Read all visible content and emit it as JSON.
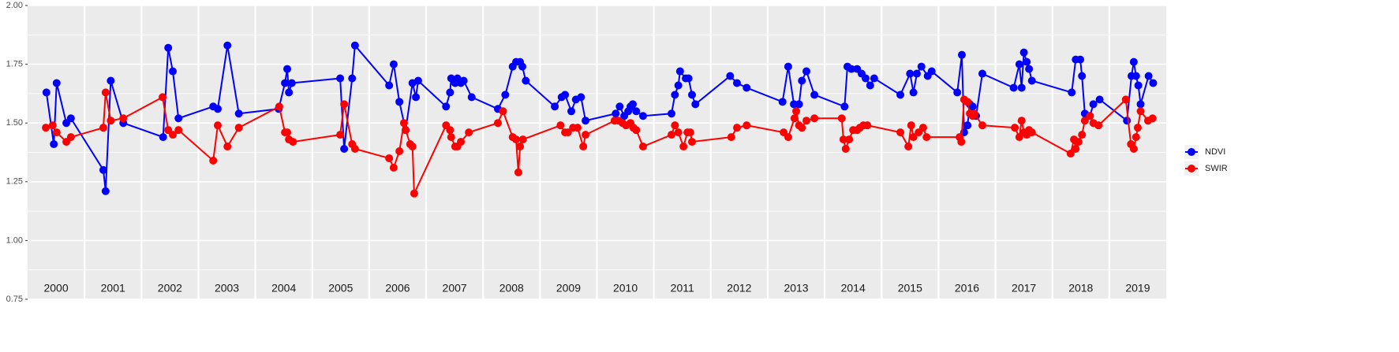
{
  "chart_data": {
    "type": "line",
    "xlim": [
      2000,
      2020
    ],
    "ylim": [
      0.75,
      2.0
    ],
    "yticks": [
      0.75,
      {
        "value": 1.0,
        "label": "1.00"
      },
      1.25,
      {
        "value": 1.5,
        "label": "1.50"
      },
      1.75,
      {
        "value": 2.0,
        "label": "2.00"
      }
    ],
    "yminor_ticks": [
      0.875,
      1.125,
      1.375,
      1.625,
      1.875
    ],
    "xticks": [
      {
        "value": 2000.5,
        "label": "2000"
      },
      {
        "value": 2001.5,
        "label": "2001"
      },
      {
        "value": 2002.5,
        "label": "2002"
      },
      {
        "value": 2003.5,
        "label": "2003"
      },
      {
        "value": 2004.5,
        "label": "2004"
      },
      {
        "value": 2005.5,
        "label": "2005"
      },
      {
        "value": 2006.5,
        "label": "2006"
      },
      {
        "value": 2007.5,
        "label": "2007"
      },
      {
        "value": 2008.5,
        "label": "2008"
      },
      {
        "value": 2009.5,
        "label": "2009"
      },
      {
        "value": 2010.5,
        "label": "2010"
      },
      {
        "value": 2011.5,
        "label": "2011"
      },
      {
        "value": 2012.5,
        "label": "2012"
      },
      {
        "value": 2013.5,
        "label": "2013"
      },
      {
        "value": 2014.5,
        "label": "2014"
      },
      {
        "value": 2015.5,
        "label": "2015"
      },
      {
        "value": 2016.5,
        "label": "2016"
      },
      {
        "value": 2017.5,
        "label": "2017"
      },
      {
        "value": 2018.5,
        "label": "2018"
      },
      {
        "value": 2019.5,
        "label": "2019"
      }
    ],
    "xgrid": [
      2001,
      2002,
      2003,
      2004,
      2005,
      2006,
      2007,
      2008,
      2009,
      2010,
      2011,
      2012,
      2013,
      2014,
      2015,
      2016,
      2017,
      2018,
      2019
    ],
    "grid": true,
    "legend": "right",
    "series": [
      {
        "name": "NDVI",
        "color": "#0000ff",
        "x": [
          2000.33,
          2000.46,
          2000.51,
          2000.68,
          2000.76,
          2001.33,
          2001.37,
          2001.46,
          2001.68,
          2002.38,
          2002.47,
          2002.55,
          2002.65,
          2003.26,
          2003.34,
          2003.51,
          2003.71,
          2004.41,
          2004.52,
          2004.56,
          2004.59,
          2004.64,
          2005.49,
          2005.56,
          2005.7,
          2005.75,
          2006.35,
          2006.43,
          2006.53,
          2006.64,
          2006.76,
          2006.82,
          2006.86,
          2007.35,
          2007.42,
          2007.44,
          2007.51,
          2007.55,
          2007.61,
          2007.66,
          2007.8,
          2008.26,
          2008.39,
          2008.52,
          2008.58,
          2008.65,
          2008.69,
          2008.75,
          2009.26,
          2009.38,
          2009.44,
          2009.55,
          2009.63,
          2009.72,
          2009.8,
          2010.33,
          2010.4,
          2010.48,
          2010.55,
          2010.59,
          2010.63,
          2010.69,
          2010.81,
          2011.31,
          2011.37,
          2011.43,
          2011.46,
          2011.56,
          2011.61,
          2011.67,
          2011.73,
          2012.34,
          2012.46,
          2012.63,
          2013.26,
          2013.36,
          2013.46,
          2013.55,
          2013.6,
          2013.68,
          2013.82,
          2014.35,
          2014.4,
          2014.47,
          2014.57,
          2014.65,
          2014.72,
          2014.8,
          2014.87,
          2015.33,
          2015.5,
          2015.56,
          2015.62,
          2015.7,
          2015.81,
          2015.88,
          2016.33,
          2016.41,
          2016.45,
          2016.51,
          2016.55,
          2016.6,
          2016.66,
          2016.77,
          2017.32,
          2017.42,
          2017.46,
          2017.5,
          2017.55,
          2017.59,
          2017.64,
          2018.34,
          2018.41,
          2018.49,
          2018.52,
          2018.57,
          2018.66,
          2018.72,
          2018.83,
          2019.31,
          2019.39,
          2019.43,
          2019.47,
          2019.51,
          2019.55,
          2019.69,
          2019.77
        ],
        "values": [
          1.63,
          1.41,
          1.67,
          1.5,
          1.52,
          1.3,
          1.21,
          1.68,
          1.5,
          1.44,
          1.82,
          1.72,
          1.52,
          1.57,
          1.56,
          1.83,
          1.54,
          1.56,
          1.67,
          1.73,
          1.63,
          1.67,
          1.69,
          1.39,
          1.69,
          1.83,
          1.66,
          1.75,
          1.59,
          1.47,
          1.67,
          1.61,
          1.68,
          1.57,
          1.63,
          1.69,
          1.67,
          1.69,
          1.67,
          1.68,
          1.61,
          1.56,
          1.62,
          1.74,
          1.76,
          1.76,
          1.74,
          1.68,
          1.57,
          1.61,
          1.62,
          1.55,
          1.6,
          1.61,
          1.51,
          1.54,
          1.57,
          1.53,
          1.55,
          1.57,
          1.58,
          1.55,
          1.53,
          1.54,
          1.62,
          1.66,
          1.72,
          1.69,
          1.69,
          1.62,
          1.58,
          1.7,
          1.67,
          1.65,
          1.59,
          1.74,
          1.58,
          1.58,
          1.68,
          1.72,
          1.62,
          1.57,
          1.74,
          1.73,
          1.73,
          1.71,
          1.69,
          1.66,
          1.69,
          1.62,
          1.71,
          1.63,
          1.71,
          1.74,
          1.7,
          1.72,
          1.63,
          1.79,
          1.46,
          1.49,
          1.58,
          1.57,
          1.53,
          1.71,
          1.65,
          1.75,
          1.65,
          1.8,
          1.76,
          1.73,
          1.68,
          1.63,
          1.77,
          1.77,
          1.7,
          1.54,
          1.53,
          1.58,
          1.6,
          1.51,
          1.7,
          1.76,
          1.7,
          1.66,
          1.58,
          1.7,
          1.67
        ]
      },
      {
        "name": "SWIR",
        "color": "#ff0000",
        "x": [
          2000.32,
          2000.44,
          2000.51,
          2000.68,
          2000.76,
          2001.33,
          2001.37,
          2001.46,
          2001.68,
          2002.37,
          2002.47,
          2002.55,
          2002.65,
          2003.26,
          2003.34,
          2003.51,
          2003.71,
          2004.42,
          2004.52,
          2004.56,
          2004.59,
          2004.66,
          2005.49,
          2005.56,
          2005.7,
          2005.75,
          2006.35,
          2006.43,
          2006.53,
          2006.61,
          2006.64,
          2006.72,
          2006.76,
          2006.79,
          2007.35,
          2007.42,
          2007.44,
          2007.51,
          2007.55,
          2007.61,
          2007.75,
          2008.26,
          2008.35,
          2008.52,
          2008.58,
          2008.62,
          2008.65,
          2008.7,
          2009.36,
          2009.44,
          2009.49,
          2009.58,
          2009.66,
          2009.76,
          2009.8,
          2010.31,
          2010.38,
          2010.45,
          2010.51,
          2010.59,
          2010.64,
          2010.69,
          2010.81,
          2011.31,
          2011.37,
          2011.43,
          2011.52,
          2011.59,
          2011.64,
          2011.67,
          2012.36,
          2012.46,
          2012.63,
          2013.28,
          2013.36,
          2013.47,
          2013.5,
          2013.55,
          2013.6,
          2013.68,
          2013.82,
          2014.3,
          2014.33,
          2014.37,
          2014.43,
          2014.5,
          2014.57,
          2014.62,
          2014.68,
          2014.75,
          2015.33,
          2015.47,
          2015.52,
          2015.56,
          2015.65,
          2015.73,
          2015.79,
          2016.37,
          2016.4,
          2016.45,
          2016.51,
          2016.55,
          2016.6,
          2016.63,
          2016.77,
          2017.34,
          2017.42,
          2017.46,
          2017.5,
          2017.55,
          2017.59,
          2017.64,
          2018.32,
          2018.38,
          2018.41,
          2018.46,
          2018.52,
          2018.57,
          2018.66,
          2018.72,
          2018.81,
          2019.29,
          2019.38,
          2019.43,
          2019.47,
          2019.5,
          2019.55,
          2019.68,
          2019.76
        ],
        "values": [
          1.48,
          1.49,
          1.46,
          1.42,
          1.44,
          1.48,
          1.63,
          1.51,
          1.52,
          1.61,
          1.47,
          1.45,
          1.47,
          1.34,
          1.49,
          1.4,
          1.48,
          1.57,
          1.46,
          1.46,
          1.43,
          1.42,
          1.45,
          1.58,
          1.41,
          1.39,
          1.35,
          1.31,
          1.38,
          1.5,
          1.47,
          1.41,
          1.4,
          1.2,
          1.49,
          1.47,
          1.44,
          1.4,
          1.4,
          1.42,
          1.46,
          1.5,
          1.55,
          1.44,
          1.43,
          1.29,
          1.4,
          1.43,
          1.49,
          1.46,
          1.46,
          1.48,
          1.48,
          1.4,
          1.45,
          1.51,
          1.51,
          1.5,
          1.49,
          1.5,
          1.48,
          1.47,
          1.4,
          1.45,
          1.49,
          1.46,
          1.4,
          1.46,
          1.46,
          1.42,
          1.44,
          1.48,
          1.49,
          1.46,
          1.44,
          1.52,
          1.55,
          1.49,
          1.48,
          1.51,
          1.52,
          1.52,
          1.43,
          1.39,
          1.43,
          1.47,
          1.47,
          1.48,
          1.49,
          1.49,
          1.46,
          1.4,
          1.49,
          1.44,
          1.46,
          1.48,
          1.44,
          1.44,
          1.42,
          1.6,
          1.59,
          1.54,
          1.53,
          1.54,
          1.49,
          1.48,
          1.44,
          1.51,
          1.46,
          1.45,
          1.47,
          1.46,
          1.37,
          1.43,
          1.39,
          1.42,
          1.45,
          1.51,
          1.53,
          1.5,
          1.49,
          1.6,
          1.41,
          1.39,
          1.44,
          1.48,
          1.55,
          1.51,
          1.52
        ]
      }
    ]
  }
}
